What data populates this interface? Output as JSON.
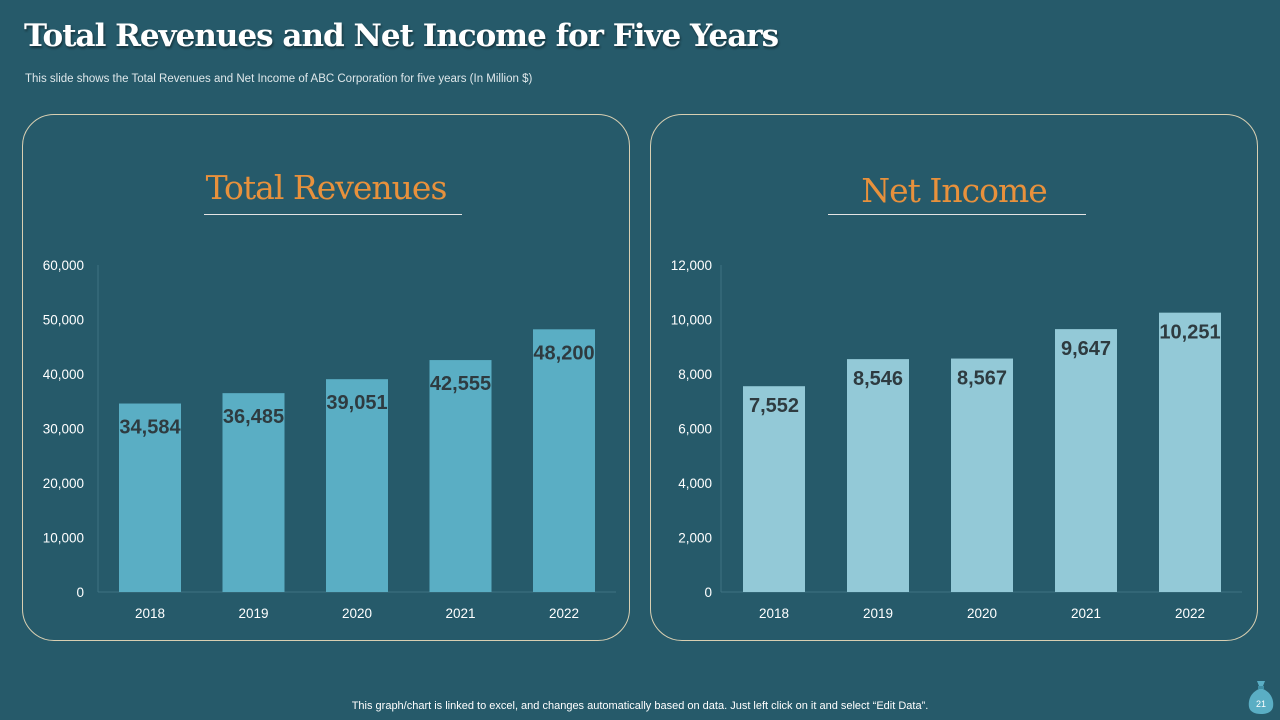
{
  "slide": {
    "title": "Total Revenues and Net Income for Five Years",
    "subtitle": "This slide shows the Total Revenues and Net Income of ABC Corporation for five years (In Million $)",
    "footer_note": "This graph/chart is linked to excel, and changes automatically based on data. Just left click on it and select “Edit Data”.",
    "page_number": "21",
    "page_icon": "money-bag-icon"
  },
  "colors": {
    "background": "#265a6a",
    "revenue_bar": "#5aaec4",
    "income_bar": "#93c9d7",
    "heading": "#e8913c",
    "axis_text": "#ffffff",
    "value_label": "#2e3b40"
  },
  "chart_data": [
    {
      "type": "bar",
      "title": "Total Revenues",
      "categories": [
        "2018",
        "2019",
        "2020",
        "2021",
        "2022"
      ],
      "values": [
        34584,
        36485,
        39051,
        42555,
        48200
      ],
      "value_labels": [
        "34,584",
        "36,485",
        "39,051",
        "42,555",
        "48,200"
      ],
      "ylim": [
        0,
        60000
      ],
      "yticks": [
        "0",
        "10,000",
        "20,000",
        "30,000",
        "40,000",
        "50,000",
        "60,000"
      ],
      "xlabel": "",
      "ylabel": "",
      "grid": false
    },
    {
      "type": "bar",
      "title": "Net Income",
      "categories": [
        "2018",
        "2019",
        "2020",
        "2021",
        "2022"
      ],
      "values": [
        7552,
        8546,
        8567,
        9647,
        10251
      ],
      "value_labels": [
        "7,552",
        "8,546",
        "8,567",
        "9,647",
        "10,251"
      ],
      "ylim": [
        0,
        12000
      ],
      "yticks": [
        "0",
        "2,000",
        "4,000",
        "6,000",
        "8,000",
        "10,000",
        "12,000"
      ],
      "xlabel": "",
      "ylabel": "",
      "grid": false
    }
  ]
}
